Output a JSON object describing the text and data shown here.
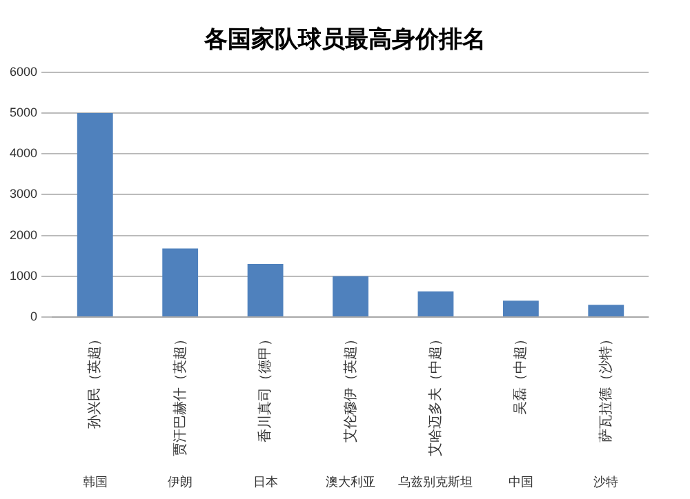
{
  "chart_data": {
    "type": "bar",
    "title": "各国家队球员最高身价排名",
    "categories": [
      "孙兴民（英超）",
      "贾汗巴赫什（英超）",
      "香川真司（德甲）",
      "艾伦穆伊（英超）",
      "艾哈迈多夫（中超）",
      "吴磊（中超）",
      "萨瓦拉德（沙特）"
    ],
    "values": [
      5000,
      1680,
      1300,
      1000,
      630,
      400,
      300
    ],
    "color": "#4f81bd",
    "ylim": [
      0,
      6000
    ],
    "yticks": [
      0,
      1000,
      2000,
      3000,
      4000,
      5000,
      6000
    ],
    "grid": "y",
    "annotations": [
      "韩国",
      "伊朗",
      "日本",
      "澳大利亚",
      "乌兹别克斯坦",
      "中国",
      "沙特"
    ]
  }
}
